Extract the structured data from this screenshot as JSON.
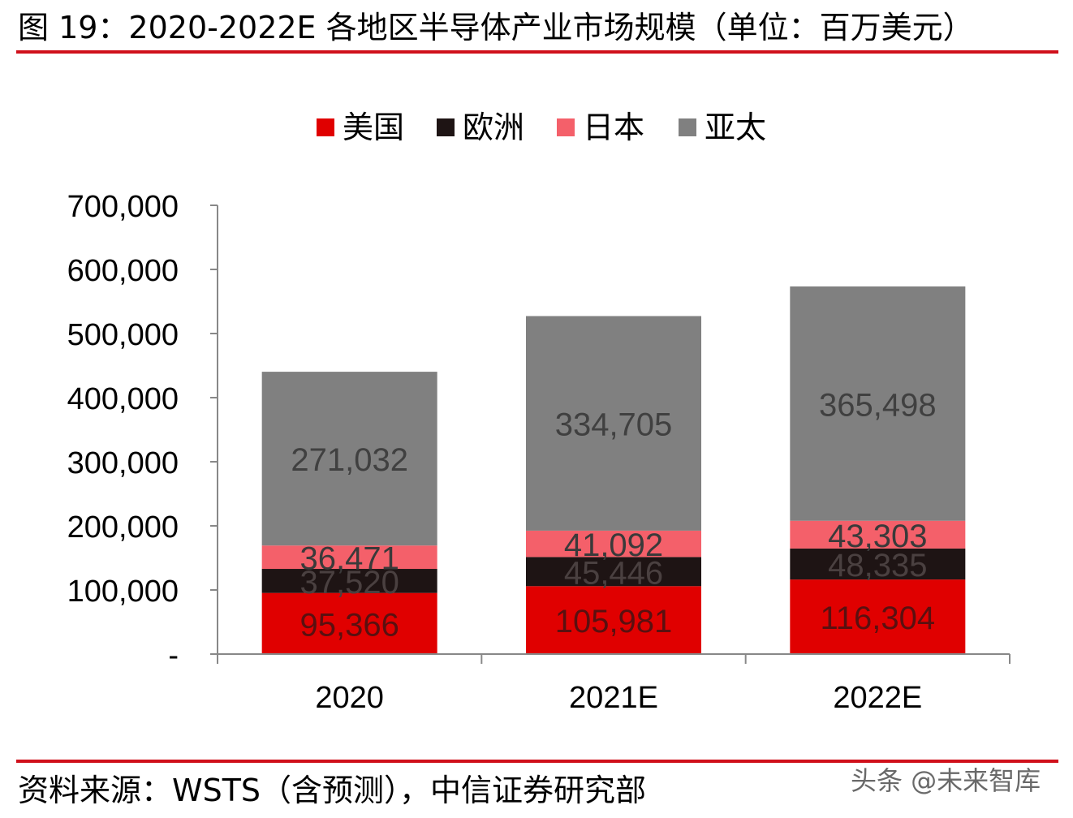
{
  "figure": {
    "title": "图 19：2020-2022E 各地区半导体产业市场规模（单位：百万美元）",
    "source": "资料来源：WSTS（含预测），中信证券研究部",
    "watermark": "头条 @未来智库",
    "rule_color": "#d0101b"
  },
  "chart_data": {
    "type": "bar",
    "stacked": true,
    "categories": [
      "2020",
      "2021E",
      "2022E"
    ],
    "series": [
      {
        "name": "美国",
        "values": [
          95366,
          105981,
          116304
        ],
        "color": "#e00000",
        "label_color": "#5a1010"
      },
      {
        "name": "欧洲",
        "values": [
          37520,
          45446,
          48335
        ],
        "color": "#1e1414",
        "label_color": "#4a4040"
      },
      {
        "name": "日本",
        "values": [
          36471,
          41092,
          43303
        ],
        "color": "#f4606a",
        "label_color": "#3a3a3a"
      },
      {
        "name": "亚太",
        "values": [
          271032,
          334705,
          365498
        ],
        "color": "#808080",
        "label_color": "#404040"
      }
    ],
    "ylim": [
      0,
      700000
    ],
    "yticks": [
      0,
      100000,
      200000,
      300000,
      400000,
      500000,
      600000,
      700000
    ],
    "ytick_labels": [
      "-",
      "100,000",
      "200,000",
      "300,000",
      "400,000",
      "500,000",
      "600,000",
      "700,000"
    ],
    "data_labels": [
      [
        "95,366",
        "105,981",
        "116,304"
      ],
      [
        "37,520",
        "45,446",
        "48,335"
      ],
      [
        "36,471",
        "41,092",
        "43,303"
      ],
      [
        "271,032",
        "334,705",
        "365,498"
      ]
    ],
    "legend_position": "top-center",
    "grid": false,
    "axis_color": "#888888"
  }
}
